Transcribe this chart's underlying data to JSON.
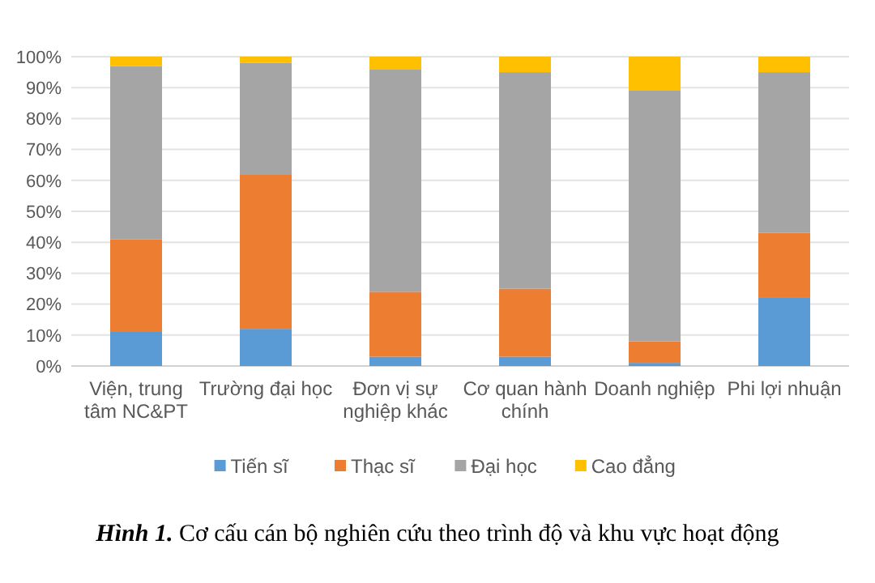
{
  "chart_data": {
    "type": "bar",
    "stacked": true,
    "categories": [
      "Viện, trung tâm NC&PT",
      "Trường đại học",
      "Đơn vị sự nghiệp khác",
      "Cơ quan hành chính",
      "Doanh nghiệp",
      "Phi lợi nhuận"
    ],
    "series": [
      {
        "name": "Tiến sĩ",
        "color": "#5b9bd5",
        "values": [
          11,
          12,
          3,
          3,
          1,
          22
        ]
      },
      {
        "name": "Thạc sĩ",
        "color": "#ed7d31",
        "values": [
          30,
          50,
          21,
          22,
          7,
          21
        ]
      },
      {
        "name": "Đại học",
        "color": "#a5a5a5",
        "values": [
          56,
          36,
          72,
          70,
          81,
          52
        ]
      },
      {
        "name": "Cao đẳng",
        "color": "#ffc000",
        "values": [
          3,
          2,
          4,
          5,
          11,
          5
        ]
      }
    ],
    "ylim": [
      0,
      100
    ],
    "yticks": [
      {
        "value": 0,
        "label": "0%"
      },
      {
        "value": 10,
        "label": "10%"
      },
      {
        "value": 20,
        "label": "20%"
      },
      {
        "value": 30,
        "label": "30%"
      },
      {
        "value": 40,
        "label": "40%"
      },
      {
        "value": 50,
        "label": "50%"
      },
      {
        "value": 60,
        "label": "60%"
      },
      {
        "value": 70,
        "label": "70%"
      },
      {
        "value": 80,
        "label": "80%"
      },
      {
        "value": 90,
        "label": "90%"
      },
      {
        "value": 100,
        "label": "100%"
      }
    ],
    "grid": "y",
    "legend": "bottom",
    "annotations": [
      "Hình 1.",
      "Cơ cấu cán bộ nghiên cứu theo trình độ và khu vực hoạt động"
    ]
  }
}
